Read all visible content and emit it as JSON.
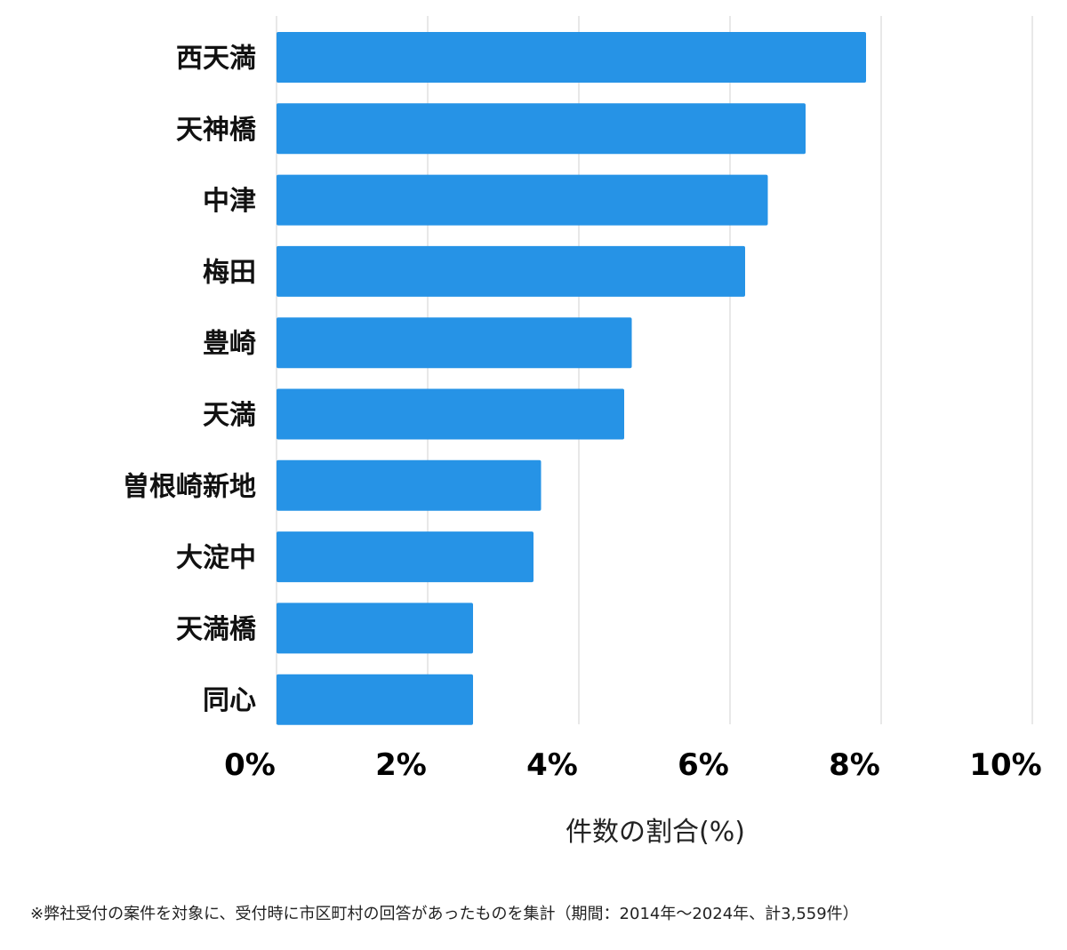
{
  "chart_data": {
    "type": "bar",
    "orientation": "horizontal",
    "categories": [
      "西天満",
      "天神橋",
      "中津",
      "梅田",
      "豊崎",
      "天満",
      "曽根崎新地",
      "大淀中",
      "天満橋",
      "同心"
    ],
    "values": [
      7.8,
      7.0,
      6.5,
      6.2,
      4.7,
      4.6,
      3.5,
      3.4,
      2.6,
      2.6
    ],
    "xlim": [
      0,
      10
    ],
    "xticks": [
      0,
      2,
      4,
      6,
      8,
      10
    ],
    "tick_labels": [
      "0%",
      "2%",
      "4%",
      "6%",
      "8%",
      "10%"
    ],
    "xlabel": "件数の割合(%)",
    "grid": true,
    "bar_color": "#2693e6",
    "grid_color": "#d0d0d0"
  },
  "footnote": "※弊社受付の案件を対象に、受付時に市区町村の回答があったものを集計（期間：2014年～2024年、計3,559件）"
}
